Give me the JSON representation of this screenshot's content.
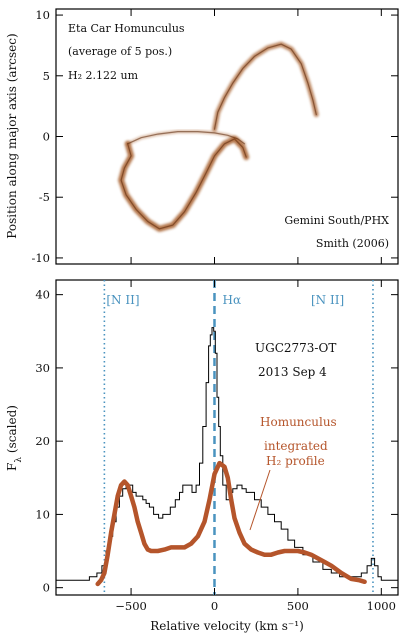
{
  "chart_data": [
    {
      "type": "image",
      "annotations": [
        "Eta Car Homunculus",
        "(average of 5 pos.)",
        "H₂ 2.122 um",
        "Gemini South/PHX",
        "Smith (2006)"
      ],
      "ylabel": "Position along major axis (arcsec)",
      "ylim": [
        -10.5,
        10.5
      ],
      "yticks": [
        -10,
        -5,
        0,
        5,
        10
      ],
      "xlim": [
        -950,
        1100
      ],
      "image_color": "#a0521e",
      "ridge_upper": {
        "x": [
          0,
          20,
          60,
          110,
          170,
          240,
          320,
          400,
          460,
          520,
          560,
          590,
          610
        ],
        "y": [
          0.6,
          2.0,
          3.2,
          4.4,
          5.6,
          6.6,
          7.3,
          7.6,
          7.2,
          6.0,
          4.4,
          3.0,
          1.8
        ]
      },
      "ridge_lower": {
        "x": [
          -520,
          -500,
          -540,
          -560,
          -530,
          -470,
          -400,
          -330,
          -250,
          -180,
          -110,
          -50,
          0,
          60,
          120,
          170,
          190
        ],
        "y": [
          -0.6,
          -1.6,
          -2.6,
          -3.6,
          -4.8,
          -6.0,
          -7.0,
          -7.6,
          -7.3,
          -6.2,
          -4.6,
          -3.0,
          -1.6,
          -0.6,
          -0.2,
          -0.9,
          -1.7
        ]
      },
      "ridge_lower_arc": {
        "x": [
          -520,
          -440,
          -340,
          -220,
          -100,
          0,
          80,
          140,
          180
        ],
        "y": [
          -0.6,
          -0.1,
          0.2,
          0.4,
          0.4,
          0.3,
          0.1,
          -0.2,
          -0.6
        ]
      }
    },
    {
      "type": "line",
      "title": "UGC2773-OT",
      "subtitle": "2013 Sep 4",
      "xlabel": "Relative velocity (km s⁻¹)",
      "ylabel": "F",
      "ylabel_sub": "λ",
      "ylabel_suffix": " (scaled)",
      "xlim": [
        -950,
        1100
      ],
      "ylim": [
        -1,
        42
      ],
      "xticks": [
        -500,
        0,
        500,
        1000
      ],
      "xtick_labels": [
        "−500",
        "0",
        "500",
        "1000"
      ],
      "yticks": [
        0,
        10,
        20,
        30,
        40
      ],
      "vlines": [
        {
          "x": -660,
          "label": "[N II]",
          "style": "dotted",
          "color": "#4a93bf"
        },
        {
          "x": 0,
          "label": "Hα",
          "style": "dashed",
          "color": "#4a93bf"
        },
        {
          "x": 950,
          "label": "[N II]",
          "style": "dotted",
          "color": "#4a93bf"
        }
      ],
      "overlay_labels": [
        "Homunculus",
        "integrated",
        "H₂ profile"
      ],
      "overlay_color": "#b5552b",
      "series": [
        {
          "x": [
            -950,
            -850,
            -780,
            -720,
            -690,
            -660,
            -640,
            -620,
            -600,
            -580,
            -560,
            -540,
            -520,
            -500,
            -480,
            -460,
            -440,
            -420,
            -400,
            -380,
            -350,
            -320,
            -300,
            -280,
            -250,
            -220,
            -200,
            -180,
            -150,
            -120,
            -100,
            -80,
            -60,
            -40,
            -30,
            -20,
            -10,
            0,
            10,
            20,
            30,
            40,
            60,
            80,
            100,
            120,
            150,
            180,
            200,
            220,
            260,
            300,
            340,
            380,
            420,
            460,
            500,
            560,
            620,
            680,
            720,
            780,
            820,
            860,
            900,
            930,
            950,
            970,
            990,
            1010,
            1100
          ],
          "y": [
            1,
            1,
            1,
            1.5,
            2,
            3,
            5,
            7,
            9,
            11,
            12.5,
            13.5,
            14,
            14,
            13,
            12.5,
            12.5,
            12,
            11.5,
            11,
            10,
            9.5,
            10,
            10,
            11,
            12,
            13,
            14,
            14,
            13,
            14,
            17,
            22,
            28,
            33,
            34.5,
            35.5,
            35,
            32,
            26,
            22,
            18,
            14,
            12,
            13,
            13.5,
            14,
            13.5,
            13,
            13,
            12,
            11,
            10,
            9,
            8,
            6.5,
            5.5,
            4.5,
            3.5,
            2.5,
            2,
            1.5,
            1.5,
            1.5,
            2,
            3,
            4,
            3,
            1.5,
            1,
            1
          ]
        },
        {
          "x": [
            -700,
            -680,
            -660,
            -640,
            -620,
            -600,
            -580,
            -560,
            -540,
            -520,
            -500,
            -480,
            -460,
            -440,
            -420,
            -400,
            -380,
            -340,
            -300,
            -260,
            -220,
            -180,
            -140,
            -100,
            -60,
            -30,
            0,
            30,
            60,
            80,
            100,
            120,
            150,
            180,
            220,
            260,
            300,
            340,
            380,
            420,
            460,
            500,
            540,
            580,
            620,
            660,
            700,
            760,
            820,
            870,
            900
          ],
          "y": [
            0.5,
            1,
            2,
            4.5,
            7.5,
            10,
            12.5,
            14,
            14.5,
            14,
            12.5,
            11,
            9,
            7.5,
            6,
            5.2,
            5,
            5,
            5.2,
            5.5,
            5.5,
            5.5,
            6,
            7,
            9,
            12,
            15.5,
            17,
            16.5,
            15,
            12,
            9.5,
            7.5,
            6,
            5.2,
            4.8,
            4.5,
            4.5,
            4.8,
            5,
            5,
            5,
            4.8,
            4.5,
            4,
            3.5,
            3,
            2,
            1.2,
            1,
            0.8
          ]
        }
      ]
    }
  ]
}
